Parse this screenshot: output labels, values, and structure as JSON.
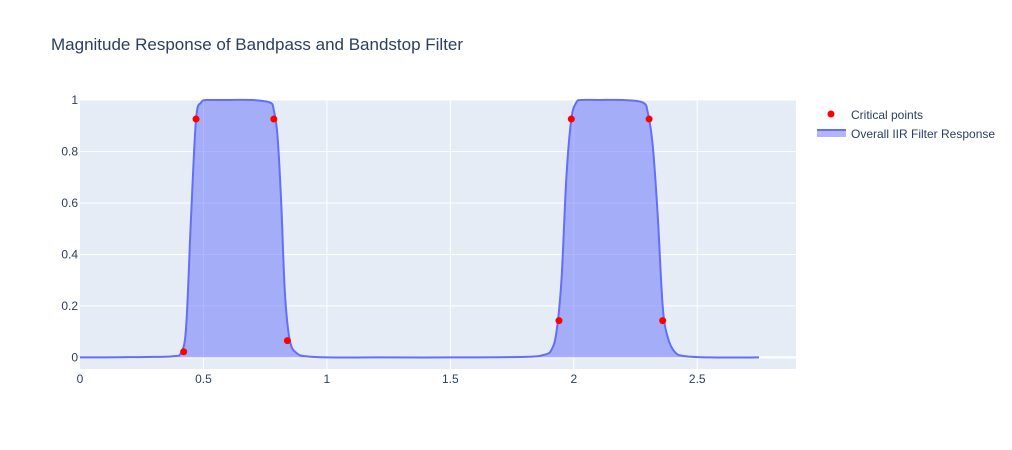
{
  "chart_data": {
    "type": "line",
    "title": "Magnitude Response of Bandpass and Bandstop Filter",
    "xlabel": "",
    "ylabel": "",
    "xlim": [
      0,
      2.9
    ],
    "ylim": [
      -0.045,
      1.0
    ],
    "x_ticks": [
      0,
      0.5,
      1,
      1.5,
      2,
      2.5
    ],
    "x_tick_labels": [
      "0",
      "0.5",
      "1",
      "1.5",
      "2",
      "2.5"
    ],
    "y_ticks": [
      0,
      0.2,
      0.4,
      0.6,
      0.8,
      1
    ],
    "y_tick_labels": [
      "0",
      "0.2",
      "0.4",
      "0.6",
      "0.8",
      "1"
    ],
    "grid": true,
    "legend_position": "top-right",
    "series": [
      {
        "name": "Critical points",
        "mode": "markers",
        "color": "#ff0000",
        "x": [
          0.42,
          0.47,
          0.785,
          0.84,
          1.94,
          1.99,
          2.305,
          2.36
        ],
        "y": [
          0.022,
          0.926,
          0.926,
          0.065,
          0.143,
          0.926,
          0.926,
          0.143
        ]
      },
      {
        "name": "Overall IIR Filter Response",
        "mode": "lines",
        "fill": "tozeroy",
        "color": "#636efa",
        "x": [
          0,
          0.1,
          0.2,
          0.3,
          0.38,
          0.41,
          0.43,
          0.45,
          0.47,
          0.49,
          0.51,
          0.53,
          0.6,
          0.7,
          0.77,
          0.785,
          0.8,
          0.815,
          0.83,
          0.85,
          0.88,
          0.92,
          1.0,
          1.2,
          1.5,
          1.8,
          1.88,
          1.91,
          1.93,
          1.95,
          1.97,
          1.99,
          2.01,
          2.03,
          2.1,
          2.2,
          2.28,
          2.3,
          2.32,
          2.34,
          2.36,
          2.38,
          2.41,
          2.45,
          2.55,
          2.75
        ],
        "y": [
          0.0,
          0.0,
          0.001,
          0.002,
          0.005,
          0.02,
          0.12,
          0.55,
          0.926,
          0.99,
          1.0,
          1.0,
          1.0,
          1.0,
          0.99,
          0.96,
          0.86,
          0.6,
          0.25,
          0.065,
          0.015,
          0.004,
          0.0,
          0.0,
          0.0,
          0.002,
          0.01,
          0.03,
          0.1,
          0.3,
          0.7,
          0.926,
          0.99,
          1.0,
          1.0,
          1.0,
          0.99,
          0.95,
          0.82,
          0.55,
          0.2,
          0.08,
          0.02,
          0.005,
          0.0,
          0.0
        ]
      }
    ]
  }
}
